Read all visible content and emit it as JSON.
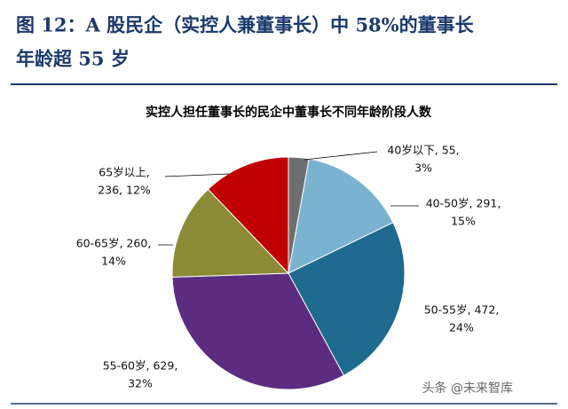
{
  "header": {
    "title_lines": [
      "图 12：A 股民企（实控人兼董事长）中 58%的董事长",
      "年龄超 55 岁"
    ]
  },
  "watermark": "头条 @未来智库",
  "chart_data": {
    "type": "pie",
    "title": "实控人担任董事长的民企中董事长不同年龄阶段人数",
    "values": [
      55,
      291,
      472,
      629,
      260,
      236
    ],
    "value_labels": [
      [
        "40岁以下, 55,",
        "3%"
      ],
      [
        "40-50岁, 291,",
        "15%"
      ],
      [
        "50-55岁, 472,",
        "24%"
      ],
      [
        "55-60岁, 629,",
        "32%"
      ],
      [
        "60-65岁, 260,",
        "14%"
      ],
      [
        "65岁以上,",
        "236, 12%"
      ]
    ],
    "colors": [
      "#6e6e6e",
      "#79b3cf",
      "#1f6a8f",
      "#5c2c80",
      "#8b8b37",
      "#c00000"
    ]
  }
}
